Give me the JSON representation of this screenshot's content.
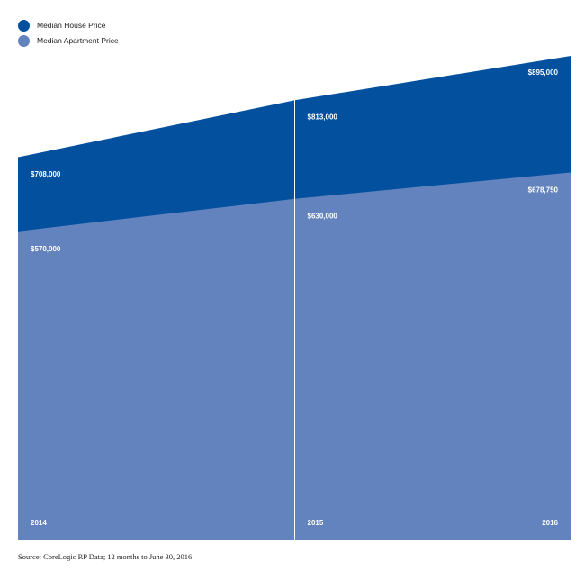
{
  "legend": [
    {
      "label": "Median House Price",
      "color": "#03509e"
    },
    {
      "label": "Median Apartment Price",
      "color": "#6283bd"
    }
  ],
  "source": "Source: CoreLogic RP Data; 12 months to June 30, 2016",
  "chart_data": {
    "type": "area",
    "stacked": false,
    "categories": [
      "2014",
      "2015",
      "2016"
    ],
    "series": [
      {
        "name": "Median House Price",
        "values": [
          708000,
          813000,
          895000
        ],
        "labels": [
          "$708,000",
          "$813,000",
          "$895,000"
        ],
        "color": "#03509e"
      },
      {
        "name": "Median Apartment Price",
        "values": [
          570000,
          630000,
          678750
        ],
        "labels": [
          "$570,000",
          "$630,000",
          "$678,750"
        ],
        "color": "#6283bd"
      }
    ],
    "ylim": [
      0,
      980000
    ],
    "grid": false,
    "legend_position": "top-left"
  }
}
